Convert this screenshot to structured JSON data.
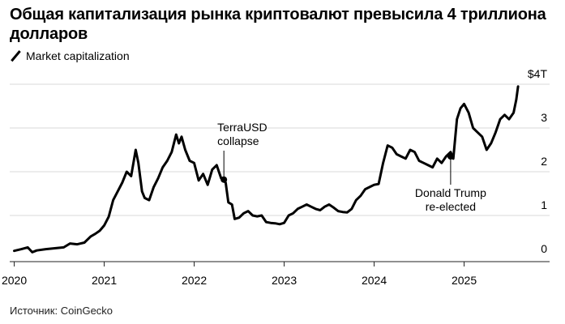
{
  "title": "Общая капитализация рынка криптовалют превысила 4 триллиона долларов",
  "legend_label": "Market capitalization",
  "source": "Источник: CoinGecko",
  "colors": {
    "line": "#000000",
    "grid": "#d9d9d9",
    "axis": "#222222"
  },
  "chart_data": {
    "type": "line",
    "title": "Общая капитализация рынка криптовалют превысила 4 триллиона долларов",
    "xlabel": "",
    "ylabel": "",
    "xlim": [
      2019.95,
      2025.95
    ],
    "ylim": [
      0,
      4
    ],
    "y_ticks": [
      {
        "value": 4,
        "label": "$4T"
      },
      {
        "value": 3,
        "label": "3"
      },
      {
        "value": 2,
        "label": "2"
      },
      {
        "value": 1,
        "label": "1"
      },
      {
        "value": 0,
        "label": "0"
      }
    ],
    "x_ticks": [
      {
        "value": 2020,
        "label": "2020"
      },
      {
        "value": 2021,
        "label": "2021"
      },
      {
        "value": 2022,
        "label": "2022"
      },
      {
        "value": 2023,
        "label": "2023"
      },
      {
        "value": 2024,
        "label": "2024"
      },
      {
        "value": 2025,
        "label": "2025"
      }
    ],
    "series": [
      {
        "name": "Market capitalization",
        "unit": "trillion USD",
        "x": [
          2020.0,
          2020.08,
          2020.15,
          2020.2,
          2020.25,
          2020.35,
          2020.45,
          2020.55,
          2020.62,
          2020.7,
          2020.78,
          2020.85,
          2020.9,
          2020.95,
          2021.0,
          2021.05,
          2021.1,
          2021.15,
          2021.2,
          2021.25,
          2021.3,
          2021.35,
          2021.38,
          2021.42,
          2021.45,
          2021.5,
          2021.55,
          2021.6,
          2021.65,
          2021.7,
          2021.75,
          2021.8,
          2021.83,
          2021.86,
          2021.9,
          2021.95,
          2022.0,
          2022.05,
          2022.1,
          2022.15,
          2022.2,
          2022.25,
          2022.3,
          2022.35,
          2022.38,
          2022.42,
          2022.45,
          2022.5,
          2022.55,
          2022.6,
          2022.65,
          2022.7,
          2022.75,
          2022.8,
          2022.85,
          2022.9,
          2022.95,
          2023.0,
          2023.05,
          2023.1,
          2023.15,
          2023.2,
          2023.25,
          2023.3,
          2023.35,
          2023.4,
          2023.45,
          2023.5,
          2023.55,
          2023.6,
          2023.65,
          2023.7,
          2023.75,
          2023.8,
          2023.85,
          2023.9,
          2023.95,
          2024.0,
          2024.05,
          2024.1,
          2024.15,
          2024.2,
          2024.25,
          2024.3,
          2024.35,
          2024.4,
          2024.45,
          2024.5,
          2024.55,
          2024.6,
          2024.65,
          2024.7,
          2024.75,
          2024.8,
          2024.85,
          2024.88,
          2024.92,
          2024.96,
          2025.0,
          2025.05,
          2025.1,
          2025.15,
          2025.2,
          2025.25,
          2025.3,
          2025.35,
          2025.4,
          2025.45,
          2025.5,
          2025.55,
          2025.58,
          2025.6
        ],
        "values": [
          0.19,
          0.23,
          0.27,
          0.16,
          0.2,
          0.23,
          0.25,
          0.27,
          0.36,
          0.34,
          0.38,
          0.52,
          0.58,
          0.65,
          0.77,
          0.97,
          1.35,
          1.55,
          1.75,
          2.0,
          1.9,
          2.5,
          2.2,
          1.55,
          1.4,
          1.35,
          1.65,
          1.85,
          2.1,
          2.25,
          2.45,
          2.85,
          2.65,
          2.8,
          2.5,
          2.25,
          2.2,
          1.8,
          1.95,
          1.7,
          2.05,
          2.15,
          1.85,
          1.75,
          1.3,
          1.25,
          0.92,
          0.95,
          1.05,
          1.1,
          1.0,
          0.98,
          1.0,
          0.85,
          0.83,
          0.82,
          0.8,
          0.83,
          1.0,
          1.05,
          1.15,
          1.2,
          1.25,
          1.2,
          1.15,
          1.12,
          1.2,
          1.25,
          1.18,
          1.1,
          1.08,
          1.07,
          1.15,
          1.35,
          1.45,
          1.6,
          1.65,
          1.7,
          1.72,
          2.2,
          2.6,
          2.55,
          2.4,
          2.35,
          2.3,
          2.5,
          2.45,
          2.25,
          2.2,
          2.15,
          2.1,
          2.3,
          2.2,
          2.35,
          2.45,
          2.3,
          3.2,
          3.45,
          3.55,
          3.35,
          3.0,
          2.9,
          2.8,
          2.5,
          2.65,
          2.9,
          3.2,
          3.3,
          3.2,
          3.35,
          3.65,
          3.95
        ]
      }
    ],
    "annotations": [
      {
        "label_lines": [
          "TerraUSD",
          "collapse"
        ],
        "x": 2022.33,
        "y": 1.82
      },
      {
        "label_lines": [
          "Donald Trump",
          "re-elected"
        ],
        "x": 2024.85,
        "y": 2.35
      }
    ]
  }
}
